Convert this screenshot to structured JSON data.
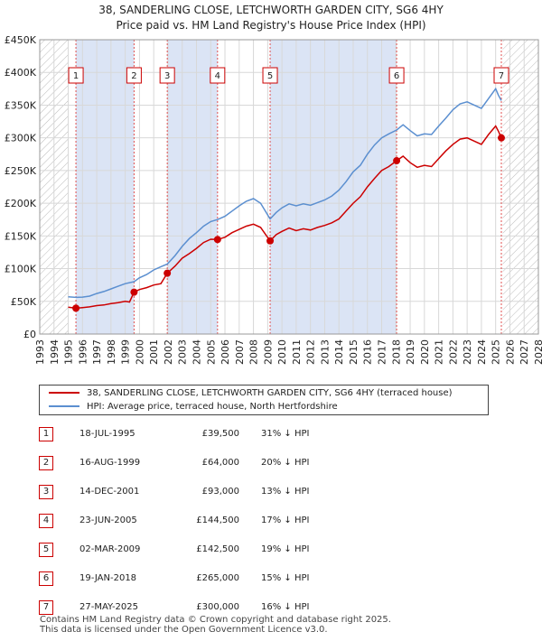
{
  "chart_data": {
    "type": "line",
    "title": "38, SANDERLING CLOSE, LETCHWORTH GARDEN CITY, SG6 4HY",
    "subtitle": "Price paid vs. HM Land Registry's House Price Index (HPI)",
    "x_range": [
      1993,
      2028
    ],
    "ylim": [
      0,
      450000
    ],
    "y_ticks": [
      {
        "value": 0,
        "label": "£0"
      },
      {
        "value": 50000,
        "label": "£50K"
      },
      {
        "value": 100000,
        "label": "£100K"
      },
      {
        "value": 150000,
        "label": "£150K"
      },
      {
        "value": 200000,
        "label": "£200K"
      },
      {
        "value": 250000,
        "label": "£250K"
      },
      {
        "value": 300000,
        "label": "£300K"
      },
      {
        "value": 350000,
        "label": "£350K"
      },
      {
        "value": 400000,
        "label": "£400K"
      },
      {
        "value": 450000,
        "label": "£450K"
      }
    ],
    "x_ticks": [
      "1993",
      "1994",
      "1995",
      "1996",
      "1997",
      "1998",
      "1999",
      "2000",
      "2001",
      "2002",
      "2003",
      "2004",
      "2005",
      "2006",
      "2007",
      "2008",
      "2009",
      "2010",
      "2011",
      "2012",
      "2013",
      "2014",
      "2015",
      "2016",
      "2017",
      "2018",
      "2019",
      "2020",
      "2021",
      "2022",
      "2023",
      "2024",
      "2025",
      "2026",
      "2027",
      "2028"
    ],
    "hatched_before": 1995.0,
    "hatched_after": 2025.5,
    "series": [
      {
        "name": "38, SANDERLING CLOSE, LETCHWORTH GARDEN CITY, SG6 4HY (terraced house)",
        "color": "#cc0000",
        "points": [
          [
            1995.0,
            41000
          ],
          [
            1995.54,
            39500
          ],
          [
            1996.0,
            40500
          ],
          [
            1996.5,
            41500
          ],
          [
            1997.0,
            43500
          ],
          [
            1997.5,
            44500
          ],
          [
            1998.0,
            46500
          ],
          [
            1998.5,
            48000
          ],
          [
            1999.0,
            50000
          ],
          [
            1999.3,
            49000
          ],
          [
            1999.62,
            64000
          ],
          [
            2000.0,
            68000
          ],
          [
            2000.5,
            71000
          ],
          [
            2001.0,
            75000
          ],
          [
            2001.5,
            77000
          ],
          [
            2001.95,
            93000
          ],
          [
            2002.5,
            104000
          ],
          [
            2003.0,
            116000
          ],
          [
            2003.5,
            123000
          ],
          [
            2004.0,
            131000
          ],
          [
            2004.5,
            140000
          ],
          [
            2005.0,
            145000
          ],
          [
            2005.48,
            144500
          ],
          [
            2006.0,
            148000
          ],
          [
            2006.5,
            155000
          ],
          [
            2007.0,
            160000
          ],
          [
            2007.5,
            165000
          ],
          [
            2008.0,
            168000
          ],
          [
            2008.5,
            163000
          ],
          [
            2009.17,
            142500
          ],
          [
            2009.6,
            152000
          ],
          [
            2010.0,
            157000
          ],
          [
            2010.5,
            162000
          ],
          [
            2011.0,
            158000
          ],
          [
            2011.5,
            161000
          ],
          [
            2012.0,
            159000
          ],
          [
            2012.5,
            163000
          ],
          [
            2013.0,
            166000
          ],
          [
            2013.5,
            170000
          ],
          [
            2014.0,
            176000
          ],
          [
            2014.5,
            188000
          ],
          [
            2015.0,
            200000
          ],
          [
            2015.5,
            210000
          ],
          [
            2016.0,
            225000
          ],
          [
            2016.5,
            238000
          ],
          [
            2017.0,
            250000
          ],
          [
            2017.5,
            256000
          ],
          [
            2018.05,
            265000
          ],
          [
            2018.5,
            272000
          ],
          [
            2019.0,
            262000
          ],
          [
            2019.5,
            255000
          ],
          [
            2020.0,
            258000
          ],
          [
            2020.5,
            256000
          ],
          [
            2021.0,
            268000
          ],
          [
            2021.5,
            280000
          ],
          [
            2022.0,
            290000
          ],
          [
            2022.5,
            298000
          ],
          [
            2023.0,
            300000
          ],
          [
            2023.5,
            295000
          ],
          [
            2024.0,
            290000
          ],
          [
            2024.5,
            305000
          ],
          [
            2025.0,
            318000
          ],
          [
            2025.2,
            310000
          ],
          [
            2025.4,
            300000
          ]
        ]
      },
      {
        "name": "HPI: Average price, terraced house, North Hertfordshire",
        "color": "#5b8fd0",
        "points": [
          [
            1995.0,
            57000
          ],
          [
            1995.54,
            56000
          ],
          [
            1996.0,
            56500
          ],
          [
            1996.5,
            58000
          ],
          [
            1997.0,
            62000
          ],
          [
            1997.5,
            65000
          ],
          [
            1998.0,
            69000
          ],
          [
            1998.5,
            73000
          ],
          [
            1999.0,
            77000
          ],
          [
            1999.62,
            80000
          ],
          [
            2000.0,
            86000
          ],
          [
            2000.5,
            91000
          ],
          [
            2001.0,
            98000
          ],
          [
            2001.5,
            103000
          ],
          [
            2001.95,
            107000
          ],
          [
            2002.5,
            120000
          ],
          [
            2003.0,
            134000
          ],
          [
            2003.5,
            146000
          ],
          [
            2004.0,
            155000
          ],
          [
            2004.5,
            165000
          ],
          [
            2005.0,
            172000
          ],
          [
            2005.48,
            175000
          ],
          [
            2006.0,
            180000
          ],
          [
            2006.5,
            188000
          ],
          [
            2007.0,
            196000
          ],
          [
            2007.5,
            203000
          ],
          [
            2008.0,
            207000
          ],
          [
            2008.5,
            200000
          ],
          [
            2009.17,
            176000
          ],
          [
            2009.6,
            186000
          ],
          [
            2010.0,
            193000
          ],
          [
            2010.5,
            199000
          ],
          [
            2011.0,
            196000
          ],
          [
            2011.5,
            199000
          ],
          [
            2012.0,
            197000
          ],
          [
            2012.5,
            201000
          ],
          [
            2013.0,
            205000
          ],
          [
            2013.5,
            211000
          ],
          [
            2014.0,
            220000
          ],
          [
            2014.5,
            233000
          ],
          [
            2015.0,
            248000
          ],
          [
            2015.5,
            258000
          ],
          [
            2016.0,
            275000
          ],
          [
            2016.5,
            289000
          ],
          [
            2017.0,
            300000
          ],
          [
            2017.5,
            306000
          ],
          [
            2018.05,
            312000
          ],
          [
            2018.5,
            320000
          ],
          [
            2019.0,
            311000
          ],
          [
            2019.5,
            303000
          ],
          [
            2020.0,
            306000
          ],
          [
            2020.5,
            305000
          ],
          [
            2021.0,
            318000
          ],
          [
            2021.5,
            330000
          ],
          [
            2022.0,
            343000
          ],
          [
            2022.5,
            352000
          ],
          [
            2023.0,
            355000
          ],
          [
            2023.5,
            350000
          ],
          [
            2024.0,
            345000
          ],
          [
            2024.5,
            360000
          ],
          [
            2025.0,
            375000
          ],
          [
            2025.2,
            365000
          ],
          [
            2025.4,
            357000
          ]
        ]
      }
    ],
    "sales": [
      {
        "n": "1",
        "x": 1995.54,
        "price": 39500
      },
      {
        "n": "2",
        "x": 1999.62,
        "price": 64000
      },
      {
        "n": "3",
        "x": 2001.95,
        "price": 93000
      },
      {
        "n": "4",
        "x": 2005.48,
        "price": 144500
      },
      {
        "n": "5",
        "x": 2009.17,
        "price": 142500
      },
      {
        "n": "6",
        "x": 2018.05,
        "price": 265000
      },
      {
        "n": "7",
        "x": 2025.4,
        "price": 300000
      }
    ],
    "shaded_bands": [
      [
        1995.54,
        1999.62
      ],
      [
        2001.95,
        2005.48
      ],
      [
        2009.17,
        2018.05
      ]
    ]
  },
  "legend": {
    "property_label": "38, SANDERLING CLOSE, LETCHWORTH GARDEN CITY, SG6 4HY (terraced house)",
    "hpi_label": "HPI: Average price, terraced house, North Hertfordshire",
    "property_color": "#cc0000",
    "hpi_color": "#5b8fd0"
  },
  "transactions": [
    {
      "n": "1",
      "date": "18-JUL-1995",
      "price": "£39,500",
      "hpi": "31% ↓ HPI"
    },
    {
      "n": "2",
      "date": "16-AUG-1999",
      "price": "£64,000",
      "hpi": "20% ↓ HPI"
    },
    {
      "n": "3",
      "date": "14-DEC-2001",
      "price": "£93,000",
      "hpi": "13% ↓ HPI"
    },
    {
      "n": "4",
      "date": "23-JUN-2005",
      "price": "£144,500",
      "hpi": "17% ↓ HPI"
    },
    {
      "n": "5",
      "date": "02-MAR-2009",
      "price": "£142,500",
      "hpi": "19% ↓ HPI"
    },
    {
      "n": "6",
      "date": "19-JAN-2018",
      "price": "£265,000",
      "hpi": "15% ↓ HPI"
    },
    {
      "n": "7",
      "date": "27-MAY-2025",
      "price": "£300,000",
      "hpi": "16% ↓ HPI"
    }
  ],
  "footer": {
    "line1": "Contains HM Land Registry data © Crown copyright and database right 2025.",
    "line2": "This data is licensed under the Open Government Licence v3.0."
  }
}
